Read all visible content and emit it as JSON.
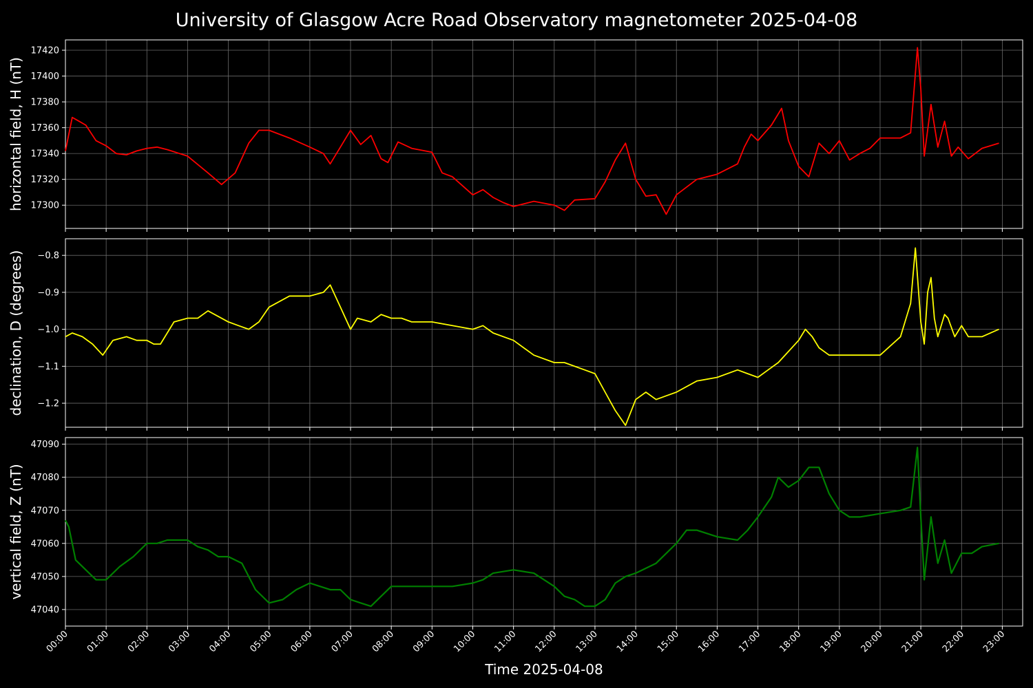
{
  "figure": {
    "title": "University of Glasgow Acre Road Observatory magnetometer 2025-04-08",
    "xlabel": "Time 2025-04-08"
  },
  "chart_data": [
    {
      "type": "line",
      "ylabel": "horizontal field, H (nT)",
      "color": "#ff0000",
      "ylim": [
        17282,
        17428
      ],
      "yticks": [
        17300,
        17320,
        17340,
        17360,
        17380,
        17400,
        17420
      ],
      "xlim_hours": [
        0,
        23.5
      ],
      "xtick_labels": [
        "00:00",
        "01:00",
        "02:00",
        "03:00",
        "04:00",
        "05:00",
        "06:00",
        "07:00",
        "08:00",
        "09:00",
        "10:00",
        "11:00",
        "12:00",
        "13:00",
        "14:00",
        "15:00",
        "16:00",
        "17:00",
        "18:00",
        "19:00",
        "20:00",
        "21:00",
        "22:00",
        "23:00"
      ],
      "grid": true,
      "x": [
        "00:00",
        "00:10",
        "00:20",
        "00:30",
        "00:45",
        "01:00",
        "01:15",
        "01:30",
        "01:45",
        "02:00",
        "02:15",
        "02:30",
        "03:00",
        "03:30",
        "03:50",
        "04:10",
        "04:30",
        "04:45",
        "05:00",
        "05:30",
        "06:00",
        "06:20",
        "06:30",
        "06:45",
        "07:00",
        "07:15",
        "07:30",
        "07:45",
        "07:55",
        "08:10",
        "08:30",
        "09:00",
        "09:15",
        "09:30",
        "10:00",
        "10:15",
        "10:30",
        "10:45",
        "11:00",
        "11:30",
        "12:00",
        "12:15",
        "12:30",
        "13:00",
        "13:15",
        "13:30",
        "13:45",
        "14:00",
        "14:15",
        "14:30",
        "14:45",
        "15:00",
        "15:30",
        "16:00",
        "16:30",
        "16:40",
        "16:50",
        "17:00",
        "17:20",
        "17:35",
        "17:45",
        "18:00",
        "18:15",
        "18:30",
        "18:45",
        "19:00",
        "19:15",
        "19:30",
        "19:45",
        "20:00",
        "20:30",
        "20:45",
        "20:55",
        "21:00",
        "21:05",
        "21:15",
        "21:25",
        "21:35",
        "21:45",
        "21:55",
        "22:10",
        "22:30",
        "22:55"
      ],
      "values": [
        17342,
        17368,
        17365,
        17362,
        17350,
        17346,
        17340,
        17339,
        17342,
        17344,
        17345,
        17343,
        17338,
        17325,
        17316,
        17325,
        17348,
        17358,
        17358,
        17352,
        17345,
        17340,
        17332,
        17345,
        17358,
        17347,
        17354,
        17336,
        17333,
        17349,
        17344,
        17341,
        17325,
        17322,
        17308,
        17312,
        17306,
        17302,
        17299,
        17303,
        17300,
        17296,
        17304,
        17305,
        17318,
        17335,
        17348,
        17320,
        17307,
        17308,
        17293,
        17308,
        17320,
        17324,
        17332,
        17345,
        17355,
        17350,
        17362,
        17375,
        17350,
        17330,
        17322,
        17348,
        17340,
        17350,
        17335,
        17340,
        17344,
        17352,
        17352,
        17356,
        17422,
        17390,
        17338,
        17378,
        17345,
        17365,
        17338,
        17345,
        17336,
        17344,
        17348
      ]
    },
    {
      "type": "line",
      "ylabel": "declination, D (degrees)",
      "color": "#ffff00",
      "ylim": [
        -1.265,
        -0.755
      ],
      "yticks": [
        -1.2,
        -1.1,
        -1.0,
        -0.9,
        -0.8
      ],
      "ytick_labels": [
        "−1.2",
        "−1.1",
        "−1.0",
        "−0.9",
        "−0.8"
      ],
      "xlim_hours": [
        0,
        23.5
      ],
      "grid": true,
      "x": [
        "00:00",
        "00:10",
        "00:25",
        "00:40",
        "00:55",
        "01:10",
        "01:30",
        "01:45",
        "02:00",
        "02:10",
        "02:20",
        "02:40",
        "03:00",
        "03:15",
        "03:30",
        "04:00",
        "04:15",
        "04:30",
        "04:45",
        "05:00",
        "05:30",
        "06:00",
        "06:20",
        "06:30",
        "06:45",
        "07:00",
        "07:10",
        "07:30",
        "07:45",
        "08:00",
        "08:15",
        "08:30",
        "09:00",
        "09:30",
        "10:00",
        "10:15",
        "10:30",
        "11:00",
        "11:30",
        "12:00",
        "12:15",
        "12:30",
        "12:45",
        "13:00",
        "13:15",
        "13:30",
        "13:45",
        "14:00",
        "14:15",
        "14:30",
        "14:45",
        "15:00",
        "15:30",
        "16:00",
        "16:30",
        "16:45",
        "17:00",
        "17:15",
        "17:30",
        "17:45",
        "18:00",
        "18:10",
        "18:20",
        "18:30",
        "18:45",
        "19:00",
        "19:15",
        "19:30",
        "20:00",
        "20:30",
        "20:45",
        "20:52",
        "21:00",
        "21:05",
        "21:10",
        "21:15",
        "21:20",
        "21:25",
        "21:35",
        "21:40",
        "21:50",
        "22:00",
        "22:10",
        "22:30",
        "22:55"
      ],
      "values": [
        -1.02,
        -1.01,
        -1.02,
        -1.04,
        -1.07,
        -1.03,
        -1.02,
        -1.03,
        -1.03,
        -1.04,
        -1.04,
        -0.98,
        -0.97,
        -0.97,
        -0.95,
        -0.98,
        -0.99,
        -1.0,
        -0.98,
        -0.94,
        -0.91,
        -0.91,
        -0.9,
        -0.88,
        -0.94,
        -1.0,
        -0.97,
        -0.98,
        -0.96,
        -0.97,
        -0.97,
        -0.98,
        -0.98,
        -0.99,
        -1.0,
        -0.99,
        -1.01,
        -1.03,
        -1.07,
        -1.09,
        -1.09,
        -1.1,
        -1.11,
        -1.12,
        -1.17,
        -1.22,
        -1.26,
        -1.19,
        -1.17,
        -1.19,
        -1.18,
        -1.17,
        -1.14,
        -1.13,
        -1.11,
        -1.12,
        -1.13,
        -1.11,
        -1.09,
        -1.06,
        -1.03,
        -1.0,
        -1.02,
        -1.05,
        -1.07,
        -1.07,
        -1.07,
        -1.07,
        -1.07,
        -1.02,
        -0.93,
        -0.78,
        -0.98,
        -1.04,
        -0.9,
        -0.86,
        -0.97,
        -1.02,
        -0.96,
        -0.97,
        -1.02,
        -0.99,
        -1.02,
        -1.02,
        -1.0
      ]
    },
    {
      "type": "line",
      "ylabel": "vertical field, Z (nT)",
      "color": "#008000",
      "ylim": [
        47035,
        47092
      ],
      "yticks": [
        47040,
        47050,
        47060,
        47070,
        47080,
        47090
      ],
      "xlim_hours": [
        0,
        23.5
      ],
      "grid": true,
      "x": [
        "00:00",
        "00:05",
        "00:15",
        "00:30",
        "00:45",
        "01:00",
        "01:20",
        "01:40",
        "02:00",
        "02:15",
        "02:30",
        "03:00",
        "03:15",
        "03:30",
        "03:45",
        "04:00",
        "04:20",
        "04:40",
        "05:00",
        "05:20",
        "05:40",
        "06:00",
        "06:15",
        "06:30",
        "06:45",
        "07:00",
        "07:15",
        "07:30",
        "07:45",
        "08:00",
        "08:30",
        "09:00",
        "09:30",
        "10:00",
        "10:15",
        "10:30",
        "11:00",
        "11:30",
        "12:00",
        "12:15",
        "12:30",
        "12:45",
        "13:00",
        "13:15",
        "13:30",
        "13:45",
        "14:00",
        "14:30",
        "15:00",
        "15:15",
        "15:30",
        "16:00",
        "16:30",
        "16:45",
        "17:00",
        "17:20",
        "17:30",
        "17:45",
        "18:00",
        "18:15",
        "18:30",
        "18:45",
        "19:00",
        "19:15",
        "19:30",
        "20:00",
        "20:30",
        "20:45",
        "20:55",
        "21:00",
        "21:05",
        "21:15",
        "21:25",
        "21:35",
        "21:45",
        "22:00",
        "22:15",
        "22:30",
        "22:55"
      ],
      "values": [
        47067,
        47065,
        47055,
        47052,
        47049,
        47049,
        47053,
        47056,
        47060,
        47060,
        47061,
        47061,
        47059,
        47058,
        47056,
        47056,
        47054,
        47046,
        47042,
        47043,
        47046,
        47048,
        47047,
        47046,
        47046,
        47043,
        47042,
        47041,
        47044,
        47047,
        47047,
        47047,
        47047,
        47048,
        47049,
        47051,
        47052,
        47051,
        47047,
        47044,
        47043,
        47041,
        47041,
        47043,
        47048,
        47050,
        47051,
        47054,
        47060,
        47064,
        47064,
        47062,
        47061,
        47064,
        47068,
        47074,
        47080,
        47077,
        47079,
        47083,
        47083,
        47075,
        47070,
        47068,
        47068,
        47069,
        47070,
        47071,
        47089,
        47068,
        47049,
        47068,
        47054,
        47061,
        47051,
        47057,
        47057,
        47059,
        47060
      ]
    }
  ]
}
